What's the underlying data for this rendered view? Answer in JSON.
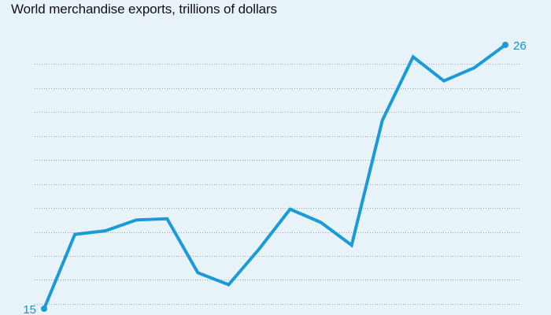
{
  "colors": {
    "background": "#e8f3f9",
    "line": "#1a9ad6",
    "grid": "#9aa5ad",
    "label": "#1a8fc7"
  },
  "chart_data": {
    "type": "line",
    "title": "World merchandise exports, trillions of dollars",
    "xlabel": "",
    "ylabel": "",
    "ylim": [
      15,
      26
    ],
    "grid": true,
    "gridlines": [
      15.2,
      16.2,
      17.2,
      18.2,
      19.2,
      20.2,
      21.2,
      22.2,
      23.2,
      24.2,
      25.2
    ],
    "x": [
      1,
      2,
      3,
      4,
      5,
      6,
      7,
      8,
      9,
      10,
      11,
      12,
      13,
      14,
      15,
      16
    ],
    "values": [
      15.0,
      18.1,
      18.25,
      18.7,
      18.75,
      16.5,
      16.0,
      17.5,
      19.15,
      18.6,
      17.65,
      22.85,
      25.5,
      24.5,
      25.05,
      26.0
    ],
    "labels": {
      "start": "15",
      "end": "26"
    }
  }
}
